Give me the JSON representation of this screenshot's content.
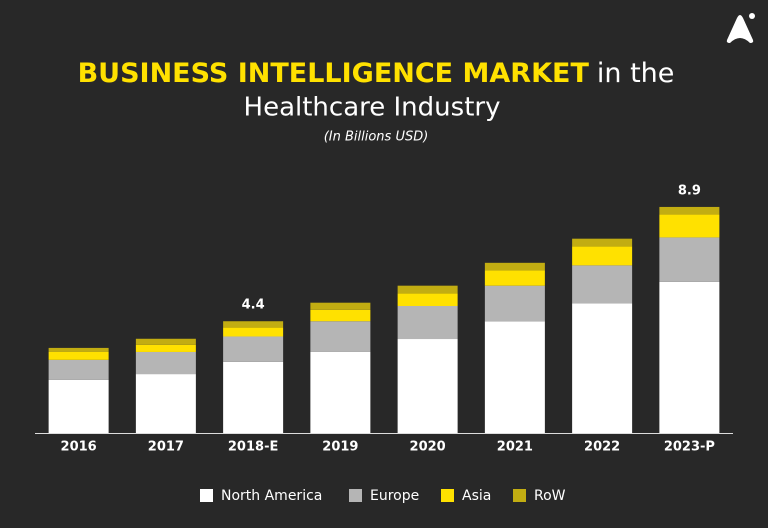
{
  "chart_data": {
    "type": "stacked-bar",
    "title": [
      "BUSINESS INTELLIGENCE MARKET",
      "in the",
      "Healthcare Industry"
    ],
    "subtitle": "(In Billions USD)",
    "categories": [
      "2016",
      "2017",
      "2018-E",
      "2019",
      "2020",
      "2021",
      "2022",
      "2023-P"
    ],
    "series": [
      {
        "name": "North America",
        "color": "#ffffff",
        "values": [
          2.09,
          2.32,
          2.8,
          3.2,
          3.7,
          4.4,
          5.1,
          5.95
        ]
      },
      {
        "name": "Europe",
        "color": "#b5b5b5",
        "values": [
          0.79,
          0.87,
          1.0,
          1.2,
          1.3,
          1.4,
          1.5,
          1.75
        ]
      },
      {
        "name": "Asia",
        "color": "#ffe100",
        "values": [
          0.31,
          0.28,
          0.35,
          0.45,
          0.5,
          0.6,
          0.75,
          0.9
        ]
      },
      {
        "name": "RoW",
        "color": "#c2ad12",
        "values": [
          0.16,
          0.24,
          0.25,
          0.28,
          0.3,
          0.3,
          0.3,
          0.3
        ]
      }
    ],
    "totals": [
      null,
      null,
      4.4,
      null,
      null,
      null,
      null,
      8.9
    ],
    "ylim": [
      0,
      10
    ],
    "title_highlight_color": "#ffe100"
  }
}
